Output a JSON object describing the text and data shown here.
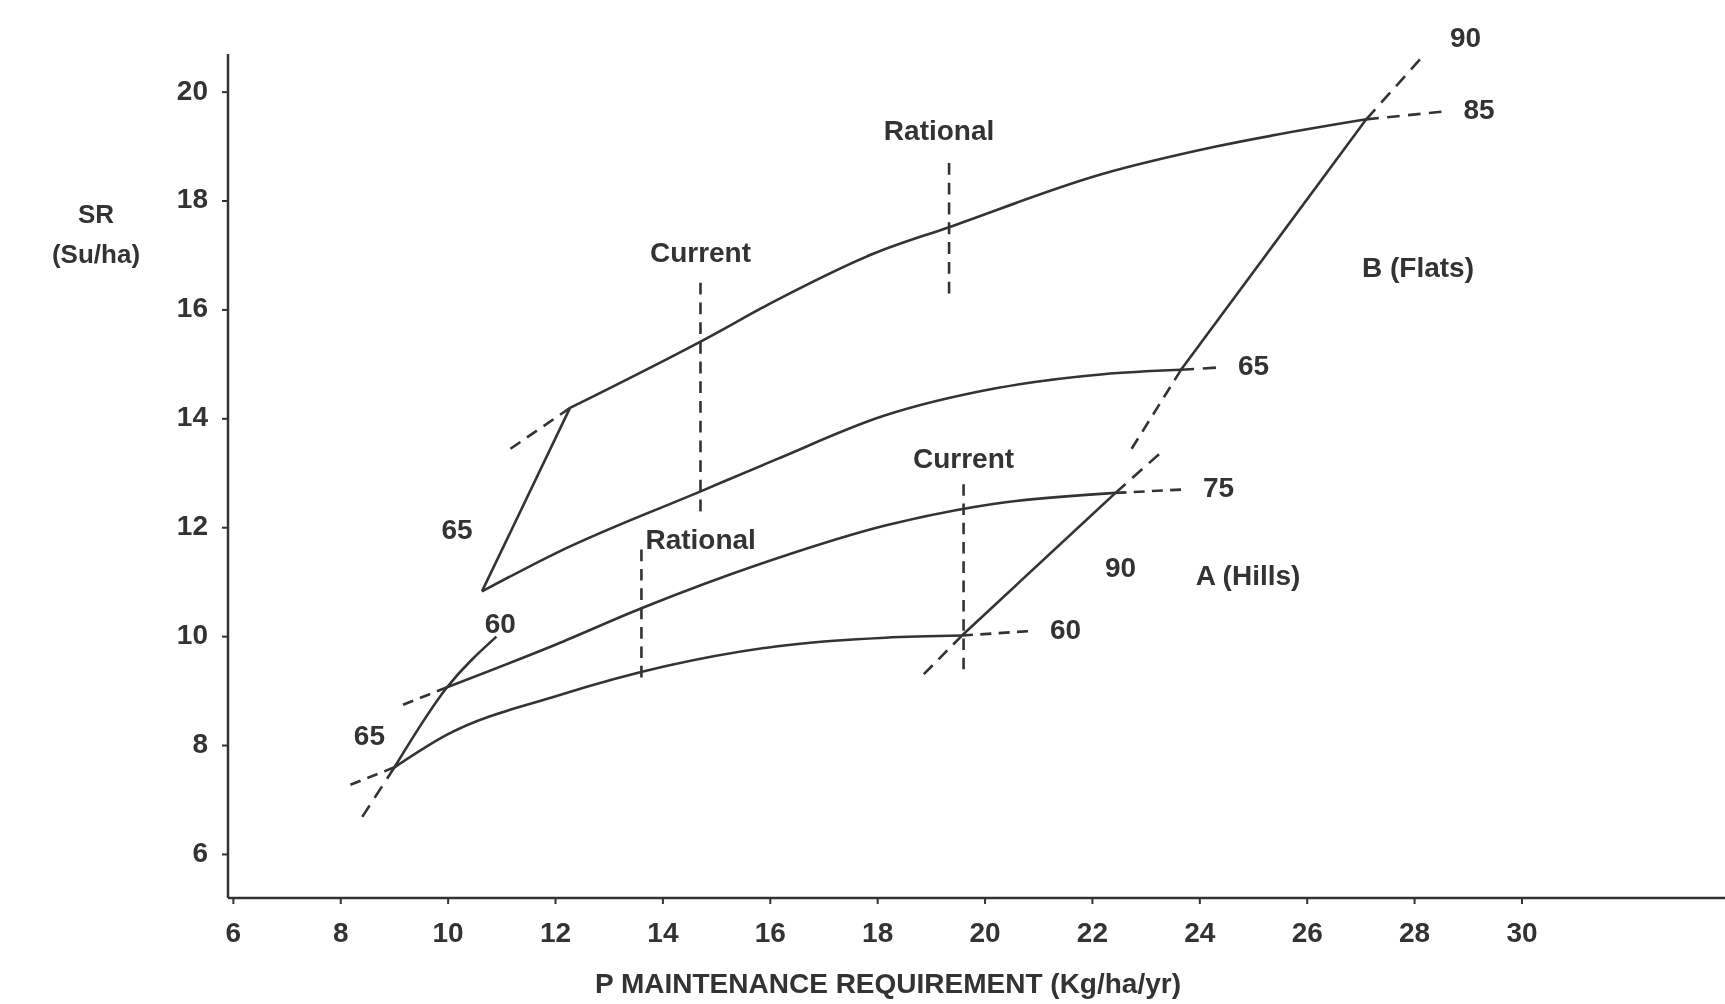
{
  "chart_data": {
    "type": "line",
    "xlabel": "P MAINTENANCE REQUIREMENT (Kg/ha/yr)",
    "ylabel": "SR\n(Su/ha)",
    "xlim": [
      5.9,
      33.8
    ],
    "ylim": [
      5.2,
      20.7
    ],
    "xticks": [
      6,
      8,
      10,
      12,
      14,
      16,
      18,
      20,
      22,
      24,
      26,
      28,
      30
    ],
    "yticks": [
      6,
      8,
      10,
      12,
      14,
      16,
      18,
      20
    ],
    "grid": false,
    "marker": "none",
    "series": [
      {
        "color": "#333333",
        "line_style": "dashed",
        "x": [
          11.16,
          12.27
        ],
        "values": [
          13.45,
          14.2
        ]
      },
      {
        "color": "#333333",
        "line_style": "solid",
        "x": [
          12.27,
          14.78,
          16.1,
          17.94,
          19.33,
          22.2,
          24.3,
          27.1
        ],
        "values": [
          14.2,
          15.46,
          16.17,
          17.04,
          17.52,
          18.5,
          19.0,
          19.5
        ]
      },
      {
        "color": "#333333",
        "line_style": "dashed",
        "x": [
          27.1,
          28.5
        ],
        "values": [
          19.5,
          19.64
        ]
      },
      {
        "color": "#333333",
        "line_style": "solid",
        "x": [
          10.63,
          12.0,
          14.78,
          16.1,
          18.1,
          20.2,
          22.2,
          23.65
        ],
        "values": [
          10.83,
          11.53,
          12.7,
          13.25,
          14.05,
          14.56,
          14.82,
          14.9
        ]
      },
      {
        "color": "#333333",
        "line_style": "dashed",
        "x": [
          23.65,
          24.3
        ],
        "values": [
          14.9,
          14.94
        ]
      },
      {
        "color": "#333333",
        "line_style": "solid",
        "x": [
          10.63,
          12.27
        ],
        "values": [
          10.83,
          14.2
        ]
      },
      {
        "color": "#333333",
        "line_style": "solid",
        "x": [
          23.65,
          27.1
        ],
        "values": [
          14.9,
          19.5
        ]
      },
      {
        "color": "#333333",
        "line_style": "dashed",
        "x": [
          27.1,
          28.1
        ],
        "values": [
          19.5,
          20.6
        ]
      },
      {
        "color": "#333333",
        "line_style": "dashed",
        "x": [
          22.73,
          23.65
        ],
        "values": [
          13.45,
          14.9
        ]
      },
      {
        "color": "#333333",
        "line_style": "dashed",
        "x": [
          9.16,
          9.98
        ],
        "values": [
          8.75,
          9.07
        ]
      },
      {
        "color": "#333333",
        "line_style": "solid",
        "x": [
          9.98,
          12.02,
          13.6,
          16.1,
          18.14,
          20.18,
          22.43
        ],
        "values": [
          9.07,
          9.86,
          10.52,
          11.43,
          12.04,
          12.44,
          12.64
        ]
      },
      {
        "color": "#333333",
        "line_style": "dashed",
        "x": [
          22.43,
          23.65
        ],
        "values": [
          12.64,
          12.7
        ]
      },
      {
        "color": "#333333",
        "line_style": "dashed",
        "x": [
          8.18,
          9.0
        ],
        "values": [
          7.28,
          7.6
        ]
      },
      {
        "color": "#333333",
        "line_style": "solid",
        "x": [
          9.0,
          9.98,
          12.02,
          14.06,
          16.1,
          18.14,
          19.57
        ],
        "values": [
          7.6,
          8.2,
          8.91,
          9.46,
          9.82,
          9.98,
          10.02
        ]
      },
      {
        "color": "#333333",
        "line_style": "dashed",
        "x": [
          19.57,
          20.8
        ],
        "values": [
          10.02,
          10.1
        ]
      },
      {
        "color": "#333333",
        "line_style": "dashed",
        "x": [
          8.4,
          9.0
        ],
        "values": [
          6.69,
          7.6
        ]
      },
      {
        "color": "#333333",
        "line_style": "solid",
        "x": [
          9.0,
          9.98,
          10.9
        ],
        "values": [
          7.6,
          9.07,
          10.0
        ]
      },
      {
        "color": "#333333",
        "line_style": "dashed",
        "x": [
          18.86,
          19.57
        ],
        "values": [
          9.31,
          10.02
        ]
      },
      {
        "color": "#333333",
        "line_style": "solid",
        "x": [
          19.57,
          22.43
        ],
        "values": [
          10.02,
          12.64
        ]
      },
      {
        "color": "#333333",
        "line_style": "dashed",
        "x": [
          22.43,
          23.24
        ],
        "values": [
          12.64,
          13.35
        ]
      },
      {
        "color": "#333333",
        "line_style": "dashed",
        "x": [
          14.7,
          14.7
        ],
        "values": [
          12.3,
          16.5
        ]
      },
      {
        "color": "#333333",
        "line_style": "dashed",
        "x": [
          19.33,
          19.33
        ],
        "values": [
          16.3,
          18.7
        ]
      },
      {
        "color": "#333333",
        "line_style": "dashed",
        "x": [
          19.6,
          19.6
        ],
        "values": [
          9.4,
          12.8
        ]
      },
      {
        "color": "#333333",
        "line_style": "dashed",
        "x": [
          13.6,
          13.6
        ],
        "values": [
          9.25,
          11.6
        ]
      }
    ],
    "annotations": [
      {
        "text": "Rational",
        "x": 19.33,
        "y": 18.7
      },
      {
        "text": "Current",
        "x": 14.7,
        "y": 16.5
      },
      {
        "text": "Current",
        "x": 19.6,
        "y": 12.8
      },
      {
        "text": "Rational",
        "x": 13.6,
        "y": 11.6
      },
      "B (Flats)",
      "A (Hills)",
      {
        "text": "90",
        "x": 28.1,
        "y": 20.6
      },
      {
        "text": "85",
        "x": 28.5,
        "y": 19.64
      },
      {
        "text": "65",
        "x": 24.3,
        "y": 14.94
      },
      {
        "text": "75",
        "x": 23.65,
        "y": 12.7
      },
      {
        "text": "60",
        "x": 20.8,
        "y": 10.1
      },
      {
        "text": "90",
        "x": 21.5,
        "y": 11.79
      },
      {
        "text": "65",
        "x": 10.63,
        "y": 10.83
      },
      {
        "text": "60",
        "x": 10.86,
        "y": 10.02
      },
      {
        "text": "65",
        "x": 9.0,
        "y": 7.6
      }
    ]
  }
}
